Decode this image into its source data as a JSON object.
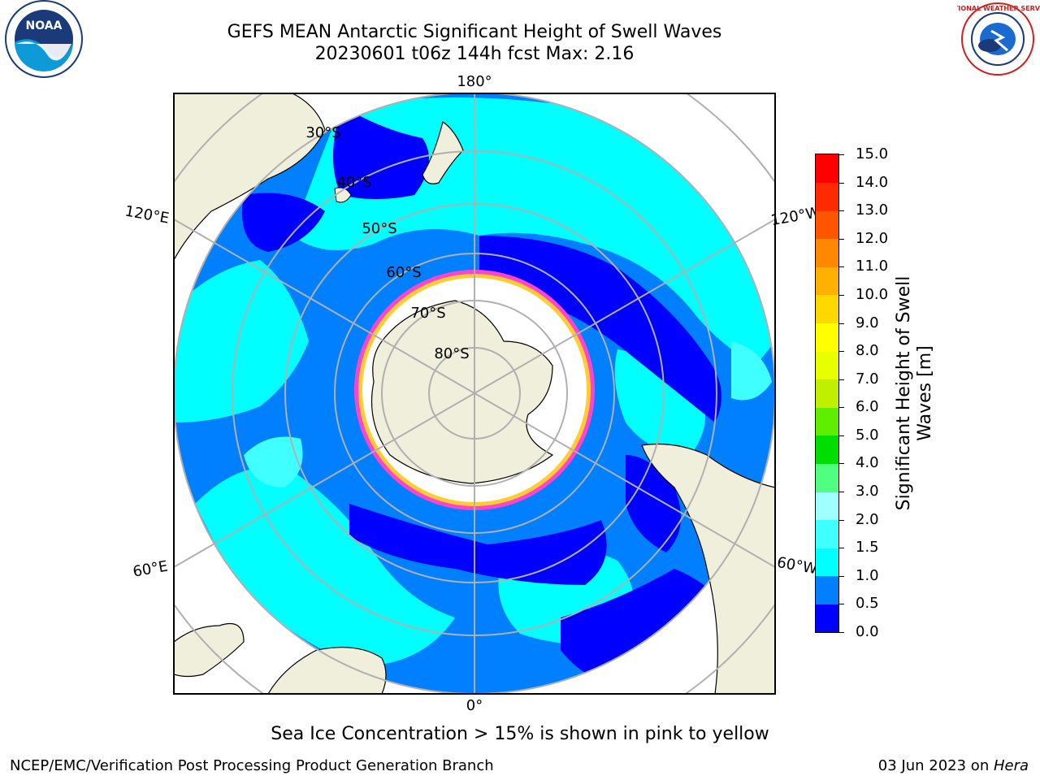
{
  "header": {
    "title_line1": "GEFS MEAN Antarctic Significant Height of Swell Waves",
    "title_line2": "20230601 t06z 144h fcst   Max: 2.16"
  },
  "logos": {
    "left": {
      "text": "NOAA",
      "icon": "noaa-logo-icon"
    },
    "right": {
      "text": "NATIONAL WEATHER SERVICE",
      "icon": "nws-logo-icon"
    }
  },
  "map": {
    "longitude_labels": {
      "top": "180°",
      "bottom": "0°",
      "left_upper": "120°E",
      "left_lower": "60°E",
      "right_upper": "120°W",
      "right_lower": "60°W"
    },
    "latitude_labels": [
      "30°S",
      "40°S",
      "50°S",
      "60°S",
      "70°S",
      "80°S"
    ]
  },
  "colorbar": {
    "label": "Significant Height of Swell Waves [m]",
    "ticks": [
      "0.0",
      "0.5",
      "1.0",
      "1.5",
      "2.0",
      "3.0",
      "4.0",
      "5.0",
      "6.0",
      "7.0",
      "8.0",
      "9.0",
      "10.0",
      "11.0",
      "12.0",
      "13.0",
      "14.0",
      "15.0"
    ],
    "colors": [
      "#0000ff",
      "#0080ff",
      "#00ffff",
      "#40ffff",
      "#a0ffff",
      "#50ff80",
      "#00dd00",
      "#60ee00",
      "#c0f000",
      "#e8ff00",
      "#ffff00",
      "#ffd800",
      "#ffb000",
      "#ff8800",
      "#ff5500",
      "#ff2a00",
      "#ff0000"
    ]
  },
  "colors": {
    "land": "#efefdb",
    "sea_ice": "#ffffff",
    "ice_edge": "#ff44cc",
    "grid": "#b0b0b0"
  },
  "notes": {
    "ice_note": "Sea Ice Concentration > 15% is shown in pink to yellow"
  },
  "footer": {
    "left": "NCEP/EMC/Verification Post Processing Product Generation Branch",
    "right_prefix": "03 Jun 2023 on ",
    "right_host": "Hera"
  }
}
